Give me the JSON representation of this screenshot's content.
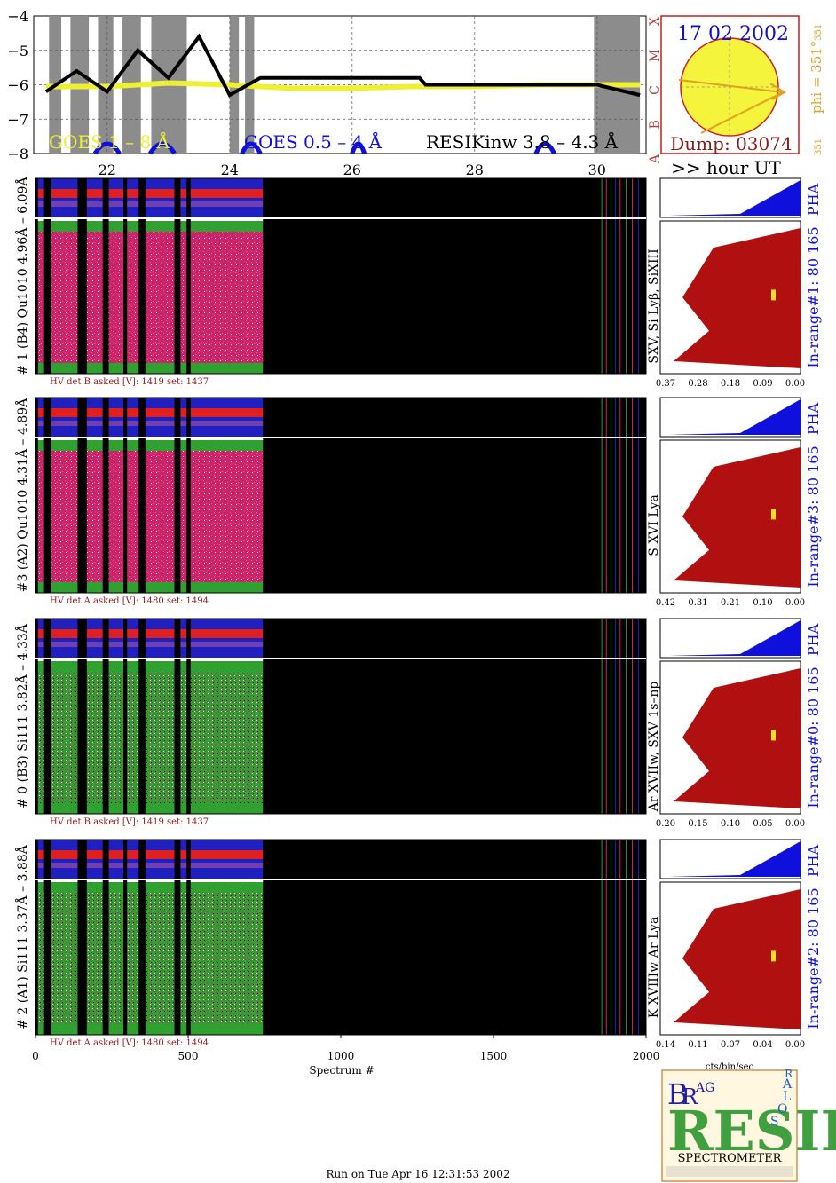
{
  "goes": {
    "yticks": [
      "-4",
      "-5",
      "-6",
      "-7",
      "-8"
    ],
    "xticks": [
      "22",
      "24",
      "26",
      "28",
      "30"
    ],
    "classes": [
      "X",
      "M",
      "C",
      "B",
      "A"
    ],
    "legend_yellow": "GOES 1 – 8 Å",
    "legend_blue": "GOES 0.5 – 4 Å",
    "legend_black": "RESIKinw 3.8 – 4.3 Å",
    "xunit": ">> hour UT",
    "colors": {
      "yellow": "#f0f032",
      "blue": "#1010dd",
      "black": "#000000",
      "gray": "#8c8c8c",
      "class_red": "#b04040"
    }
  },
  "sun": {
    "date": "17 02 2002",
    "dump": "Dump: 03074",
    "phi_label": "phi = 351°",
    "phi_sub": "351",
    "phi_bottom": "351",
    "colors": {
      "disk": "#f4f43c",
      "border": "#cc2020",
      "arrow": "#e0a020",
      "date": "#1010cc",
      "dump": "#8a1a1a"
    }
  },
  "panels": [
    {
      "ylabel": "# 1 (B4) Qu1010 4.96Å – 6.09Å",
      "lines": "SXV, Si Lyβ, SiXIII",
      "hv": "HV det B asked [V]:  1419 set:  1437",
      "inrange": "In-range#1:   80 165",
      "pha": "PHA",
      "ticks": [
        "0.37",
        "0.28",
        "0.18",
        "0.09",
        "0.00"
      ]
    },
    {
      "ylabel": "#3 (A2) Qu1010  4.31Å – 4.89Å",
      "lines": "S XVI Lya",
      "hv": "HV det A asked [V]:  1480 set:  1494",
      "inrange": "In-range#3:   80 165",
      "pha": "PHA",
      "ticks": [
        "0.42",
        "0.31",
        "0.21",
        "0.10",
        "0.00"
      ]
    },
    {
      "ylabel": "# 0 (B3) Si111  3.82Å – 4.33Å",
      "lines": "Ar XVIIw,  SXV 1s–np",
      "hv": "HV det B asked [V]:  1419 set:  1437",
      "inrange": "In-range#0:   80 165",
      "pha": "PHA",
      "ticks": [
        "0.20",
        "0.15",
        "0.10",
        "0.05",
        "0.00"
      ]
    },
    {
      "ylabel": "# 2 (A1) Si111  3.37Å – 3.88Å",
      "lines": "K XVIIIw  Ar Lya",
      "hv": "HV det A asked [V]:  1480 set:  1494",
      "inrange": "In-range#2:   80 165",
      "pha": "PHA",
      "ticks": [
        "0.14",
        "0.11",
        "0.07",
        "0.04",
        "0.00"
      ]
    }
  ],
  "spectrum_axis": {
    "ticks": [
      "0",
      "500",
      "1000",
      "1500",
      "2000"
    ],
    "label": "Spectrum #",
    "hist_unit": "cts/bin/sec"
  },
  "logo": {
    "letters_top": [
      "B",
      "R",
      "AG"
    ],
    "big": "RESIK",
    "side": [
      "S",
      "O",
      "L",
      "A",
      "R"
    ],
    "bottom": "SPECTROMETER"
  },
  "footer": "Run on Tue Apr 16 12:31:53 2002",
  "chart_data": {
    "type": "line",
    "x_unit": "hour UT",
    "xlim": [
      20.8,
      30.8
    ],
    "ylim": [
      -8,
      -4
    ],
    "y_right_classes": [
      "A",
      "B",
      "C",
      "M",
      "X"
    ],
    "series": [
      {
        "name": "GOES 1 – 8 Å",
        "x": [
          21.0,
          22.0,
          23.0,
          24.0,
          25.0,
          26.0,
          27.0,
          28.0,
          29.0,
          30.0,
          30.7
        ],
        "values": [
          -6.05,
          -6.05,
          -5.95,
          -6.0,
          -6.1,
          -6.1,
          -6.05,
          -6.05,
          -6.0,
          -6.0,
          -6.0
        ]
      },
      {
        "name": "RESIKinw 3.8 – 4.3 Å",
        "x": [
          21.0,
          21.5,
          22.0,
          22.5,
          23.0,
          23.5,
          24.0,
          24.5,
          27.1,
          27.2,
          30.0,
          30.7
        ],
        "values": [
          -6.2,
          -5.6,
          -6.2,
          -5.0,
          -5.8,
          -4.6,
          -6.3,
          -5.8,
          -5.8,
          -6.0,
          -6.0,
          -6.3
        ]
      }
    ]
  }
}
